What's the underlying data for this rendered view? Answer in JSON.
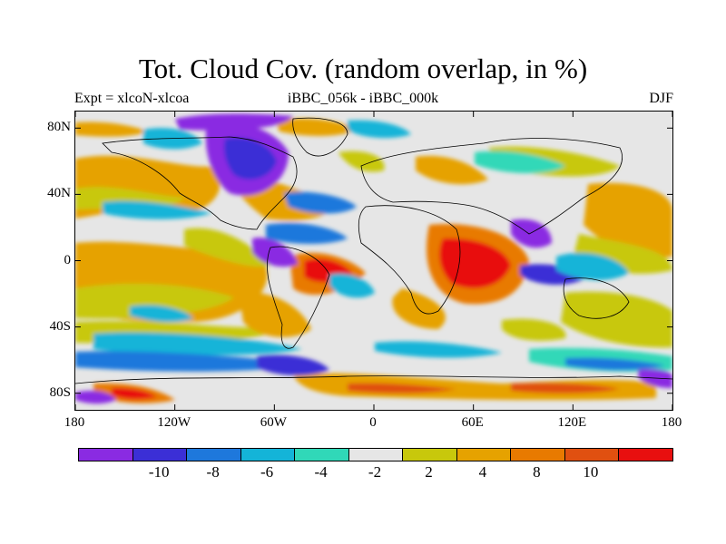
{
  "title": "Tot. Cloud Cov. (random overlap, in %)",
  "subtitle": {
    "left": "Expt = xlcoN-xlcoa",
    "center": "iBBC_056k - iBBC_000k",
    "right": "DJF"
  },
  "map": {
    "projection": "cylindrical equidistant",
    "lon_range": [
      -180,
      180
    ],
    "lat_range": [
      -90,
      90
    ],
    "lat_ticks": [
      {
        "label": "80N",
        "value": 80
      },
      {
        "label": "40N",
        "value": 40
      },
      {
        "label": "0",
        "value": 0
      },
      {
        "label": "40S",
        "value": -40
      },
      {
        "label": "80S",
        "value": -80
      }
    ],
    "lon_ticks": [
      {
        "label": "180",
        "value": -180
      },
      {
        "label": "120W",
        "value": -120
      },
      {
        "label": "60W",
        "value": -60
      },
      {
        "label": "0",
        "value": 0
      },
      {
        "label": "60E",
        "value": 60
      },
      {
        "label": "120E",
        "value": 120
      },
      {
        "label": "180",
        "value": 180
      }
    ],
    "background_value_color": "#e6e6e6"
  },
  "colorbar": {
    "colors": [
      "#8a2be2",
      "#3b2fd6",
      "#1e78dc",
      "#14b4d8",
      "#30d8b8",
      "#e6e6e6",
      "#c8c80c",
      "#e6a200",
      "#e87a00",
      "#e05010",
      "#e80f0f"
    ],
    "labels": [
      {
        "text": "-10",
        "boundary": 1
      },
      {
        "text": "-8",
        "boundary": 2
      },
      {
        "text": "-6",
        "boundary": 3
      },
      {
        "text": "-4",
        "boundary": 4
      },
      {
        "text": "-2",
        "boundary": 5
      },
      {
        "text": "2",
        "boundary": 6
      },
      {
        "text": "4",
        "boundary": 7
      },
      {
        "text": "8",
        "boundary": 8
      },
      {
        "text": "10",
        "boundary": 9
      }
    ]
  }
}
